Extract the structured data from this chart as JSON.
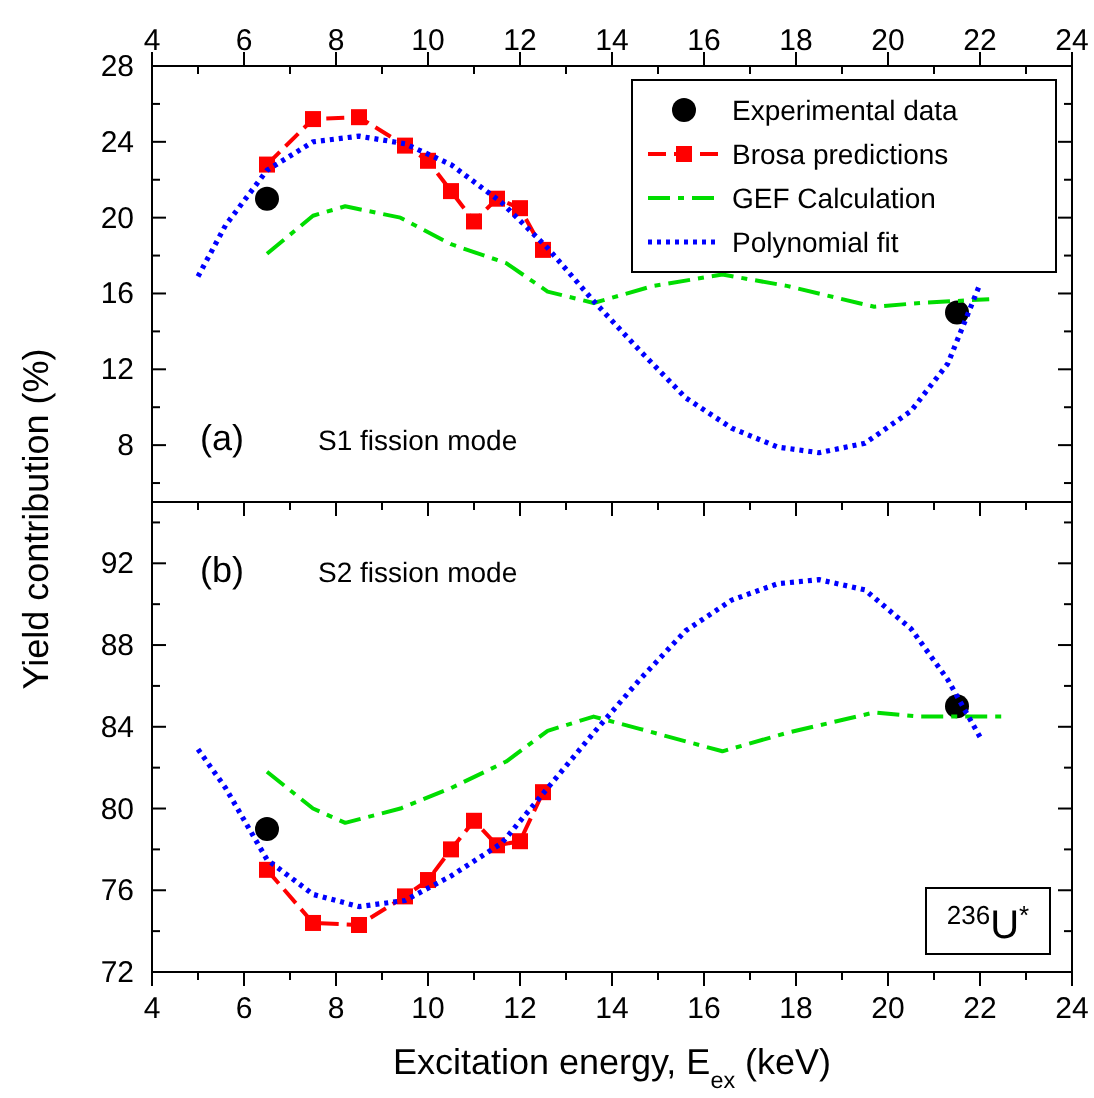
{
  "chart_data": [
    {
      "type": "line",
      "ylabel": "Yield contribution (%)",
      "annotations": [
        "(a)",
        "S1 fission mode"
      ],
      "legend": "top right",
      "tick_labels": "y",
      "xlim": [
        4,
        24
      ],
      "xticks": [
        4,
        {
          "value": 5,
          "label": null
        },
        6,
        {
          "value": 7,
          "label": null
        },
        8,
        {
          "value": 9,
          "label": null
        },
        10,
        {
          "value": 11,
          "label": null
        },
        12,
        {
          "value": 13,
          "label": null
        },
        14,
        {
          "value": 15,
          "label": null
        },
        16,
        {
          "value": 17,
          "label": null
        },
        18,
        {
          "value": 19,
          "label": null
        },
        20,
        {
          "value": 21,
          "label": null
        },
        22,
        {
          "value": 23,
          "label": null
        },
        24
      ],
      "x2lim": [
        4,
        24
      ],
      "x2ticks": [
        4,
        6,
        8,
        10,
        12,
        14,
        16,
        18,
        20,
        22,
        24
      ],
      "ylim": [
        5,
        28
      ],
      "yticks": [
        {
          "value": 6,
          "label": null
        },
        8,
        {
          "value": 10,
          "label": null
        },
        12,
        {
          "value": 14,
          "label": null
        },
        16,
        {
          "value": 18,
          "label": null
        },
        20,
        {
          "value": 22,
          "label": null
        },
        24,
        {
          "value": 26,
          "label": null
        },
        28
      ],
      "series": [
        {
          "name": "Experimental data",
          "type": "scatter",
          "marker": "circle",
          "color": "#000000",
          "x": [
            6.5,
            21.5
          ],
          "values": [
            21,
            15
          ]
        },
        {
          "name": "Brosa predictions",
          "marker": "square",
          "line_style": "dashed",
          "color": "#ff0000",
          "x": [
            6.5,
            7.5,
            8.5,
            9.5,
            10,
            10.5,
            11,
            11.5,
            12,
            12.5
          ],
          "values": [
            22.8,
            25.2,
            25.3,
            23.8,
            23.0,
            21.4,
            19.8,
            21.0,
            20.5,
            18.3
          ]
        },
        {
          "name": "GEF Calculation",
          "marker": "none",
          "line_style": "dashdot",
          "color": "#00dd00",
          "x": [
            6.5,
            7.5,
            8.2,
            9.4,
            10.5,
            11.7,
            12.6,
            13.6,
            14.9,
            16.4,
            17.8,
            19.7,
            20.7,
            22.2
          ],
          "values": [
            18.1,
            20.1,
            20.6,
            20.0,
            18.6,
            17.6,
            16.1,
            15.5,
            16.4,
            17.0,
            16.4,
            15.3,
            15.5,
            15.7
          ]
        },
        {
          "name": "Polynomial fit",
          "marker": "none",
          "line_style": "dotted",
          "color": "#0000ff",
          "x": [
            5.0,
            5.6,
            6.5,
            7.5,
            8.5,
            9.5,
            10.5,
            11.6,
            12.6,
            13.6,
            14.6,
            15.6,
            16.6,
            17.6,
            18.5,
            19.5,
            20.5,
            21.3,
            21.7,
            22.0
          ],
          "values": [
            16.9,
            19.6,
            22.5,
            24.0,
            24.3,
            23.9,
            22.8,
            20.8,
            18.4,
            15.6,
            13.0,
            10.5,
            8.9,
            7.9,
            7.6,
            8.1,
            9.8,
            12.3,
            14.7,
            16.5
          ]
        }
      ]
    },
    {
      "type": "line",
      "xlabel": "Excitation energy, E$_{ex}$ (keV)",
      "annotations": [
        "(b)",
        "S2 fission mode",
        "$^{236}$U$^{*}$"
      ],
      "xlim": [
        4,
        24
      ],
      "xticks": [
        4,
        {
          "value": 5,
          "label": null
        },
        6,
        {
          "value": 7,
          "label": null
        },
        8,
        {
          "value": 9,
          "label": null
        },
        10,
        {
          "value": 11,
          "label": null
        },
        12,
        {
          "value": 13,
          "label": null
        },
        14,
        {
          "value": 15,
          "label": null
        },
        16,
        {
          "value": 17,
          "label": null
        },
        18,
        {
          "value": 19,
          "label": null
        },
        20,
        {
          "value": 21,
          "label": null
        },
        22,
        {
          "value": 23,
          "label": null
        },
        24
      ],
      "ylim": [
        72,
        95
      ],
      "yticks": [
        72,
        {
          "value": 74,
          "label": null
        },
        76,
        {
          "value": 78,
          "label": null
        },
        80,
        {
          "value": 82,
          "label": null
        },
        84,
        {
          "value": 86,
          "label": null
        },
        88,
        {
          "value": 90,
          "label": null
        },
        92,
        {
          "value": 94,
          "label": null
        }
      ],
      "series": [
        {
          "type": "scatter",
          "marker": "circle",
          "color": "#000000",
          "x": [
            6.5,
            21.5
          ],
          "values": [
            79.0,
            85.0
          ]
        },
        {
          "marker": "square",
          "line_style": "dashed",
          "color": "#ff0000",
          "x": [
            6.5,
            7.5,
            8.5,
            9.5,
            10,
            10.5,
            11,
            11.5,
            12,
            12.5
          ],
          "values": [
            77.0,
            74.4,
            74.3,
            75.7,
            76.5,
            78.0,
            79.4,
            78.2,
            78.4,
            80.8
          ]
        },
        {
          "marker": "none",
          "line_style": "dashdot",
          "color": "#00dd00",
          "x": [
            6.5,
            7.5,
            8.2,
            9.4,
            10.5,
            11.7,
            12.6,
            13.6,
            14.6,
            16.4,
            17.8,
            19.7,
            20.7,
            22.2,
            22.6
          ],
          "values": [
            81.8,
            80.0,
            79.3,
            80.0,
            81.0,
            82.3,
            83.8,
            84.5,
            83.9,
            82.8,
            83.7,
            84.7,
            84.5,
            84.5,
            84.5
          ]
        },
        {
          "marker": "none",
          "line_style": "dotted",
          "color": "#0000ff",
          "x": [
            5.0,
            5.6,
            6.5,
            7.5,
            8.5,
            9.5,
            10.5,
            11.6,
            12.6,
            13.6,
            14.6,
            15.6,
            16.6,
            17.6,
            18.5,
            19.5,
            20.5,
            21.3,
            21.7,
            22.0
          ],
          "values": [
            82.9,
            81.0,
            77.5,
            75.8,
            75.2,
            75.5,
            76.7,
            78.3,
            81.0,
            83.7,
            86.3,
            88.7,
            90.2,
            91.0,
            91.2,
            90.7,
            88.8,
            86.3,
            84.7,
            83.5
          ]
        }
      ]
    }
  ]
}
